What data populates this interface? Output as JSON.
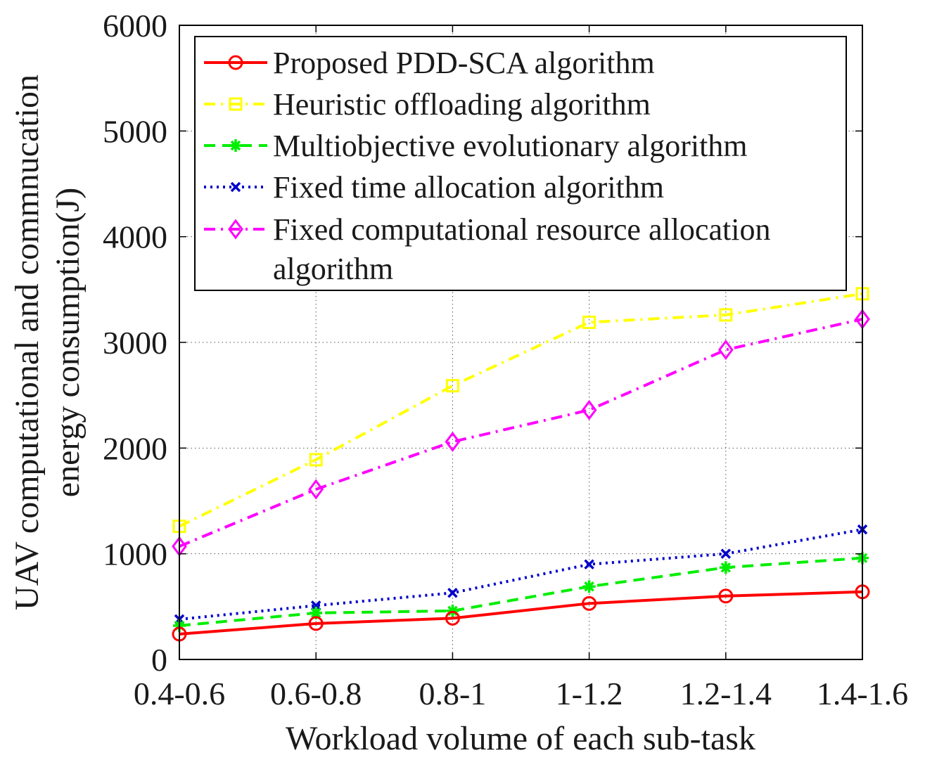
{
  "chart_data": {
    "type": "line",
    "title": "",
    "xlabel": "Workload volume of each sub-task",
    "ylabel": [
      "UAV computational and commnucation",
      "energy consumption(J)"
    ],
    "categories": [
      "0.4-0.6",
      "0.6-0.8",
      "0.8-1",
      "1-1.2",
      "1.2-1.4",
      "1.4-1.6"
    ],
    "ylim": [
      0,
      6000
    ],
    "yticks": [
      0,
      1000,
      2000,
      3000,
      4000,
      5000,
      6000
    ],
    "grid": true,
    "legend_position": "top",
    "series": [
      {
        "name": "Proposed PDD-SCA algorithm",
        "legend_lines": [
          "Proposed PDD-SCA algorithm"
        ],
        "values": [
          240,
          340,
          390,
          530,
          600,
          640
        ],
        "color": "#ff0000",
        "dash": "solid",
        "marker": "circle"
      },
      {
        "name": "Heuristic offloading algorithm",
        "legend_lines": [
          "Heuristic offloading algorithm"
        ],
        "values": [
          1260,
          1890,
          2590,
          3190,
          3260,
          3460
        ],
        "color": "#ffff00",
        "dash": "dashdot",
        "marker": "square"
      },
      {
        "name": "Multiobjective evolutionary algorithm",
        "legend_lines": [
          "Multiobjective evolutionary algorithm"
        ],
        "values": [
          320,
          440,
          460,
          690,
          870,
          960
        ],
        "color": "#00ee00",
        "dash": "dashed",
        "marker": "asterisk"
      },
      {
        "name": "Fixed time allocation algorithm",
        "legend_lines": [
          "Fixed time allocation algorithm"
        ],
        "values": [
          380,
          510,
          630,
          900,
          1000,
          1230
        ],
        "color": "#0000cc",
        "dash": "dotted",
        "marker": "x"
      },
      {
        "name": "Fixed computational resource allocation algorithm",
        "legend_lines": [
          "Fixed computational resource allocation",
          "algorithm"
        ],
        "values": [
          1070,
          1610,
          2060,
          2360,
          2930,
          3220
        ],
        "color": "#ff00ff",
        "dash": "dashdot",
        "marker": "diamond"
      }
    ]
  }
}
